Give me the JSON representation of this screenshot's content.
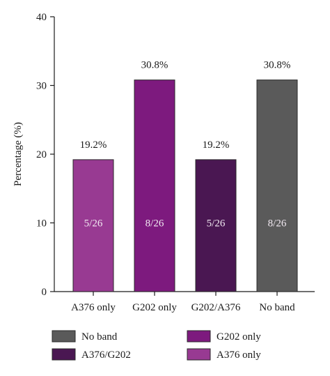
{
  "chart_data": {
    "type": "bar",
    "categories": [
      "A376 only",
      "G202 only",
      "G202/A376",
      "No band"
    ],
    "values": [
      19.2,
      30.8,
      19.2,
      30.8
    ],
    "value_labels": [
      "19.2%",
      "30.8%",
      "19.2%",
      "30.8%"
    ],
    "count_labels": [
      "5/26",
      "8/26",
      "5/26",
      "8/26"
    ],
    "colors": [
      "#983a92",
      "#7d1a7e",
      "#4a1752",
      "#5a5a5a"
    ],
    "title": "",
    "xlabel": "",
    "ylabel": "Percentage (%)",
    "ylim": [
      0,
      40
    ],
    "yticks": [
      0,
      10,
      20,
      30,
      40
    ],
    "grid": false,
    "legend": {
      "placement": "bottom",
      "entries": [
        {
          "label": "No band",
          "color": "#5a5a5a"
        },
        {
          "label": "G202 only",
          "color": "#7d1a7e"
        },
        {
          "label": "A376/G202",
          "color": "#4a1752"
        },
        {
          "label": "A376 only",
          "color": "#983a92"
        }
      ]
    }
  }
}
